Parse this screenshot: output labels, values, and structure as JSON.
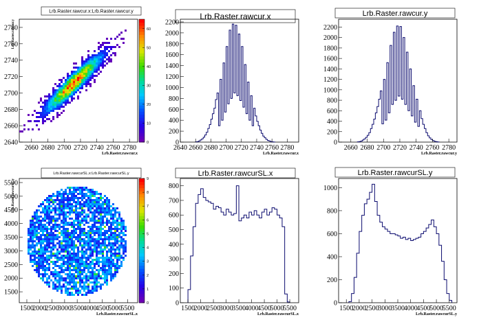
{
  "chart_data": [
    {
      "type": "heatmap",
      "title": "Lrb.Raster.rawcur.x:Lrb.Raster.rawcur.y",
      "xlabel": "Lrb.Raster.rawcur.x",
      "ylabel": "Lrb.Raster.rawcur.y",
      "xlim": [
        2645,
        2790
      ],
      "ylim": [
        2640,
        2790
      ],
      "xticks": [
        "2660",
        "2680",
        "2700",
        "2720",
        "2740",
        "2760",
        "2780"
      ],
      "yticks": [
        "2640",
        "2660",
        "2680",
        "2700",
        "2720",
        "2740",
        "2760",
        "2780"
      ],
      "colorbar": {
        "min": 0,
        "max": 65,
        "ticks": [
          "0",
          "10",
          "20",
          "30",
          "40",
          "50",
          "60"
        ]
      },
      "distribution": {
        "shape": "correlated-ellipse",
        "cx": 2712,
        "cy": 2712,
        "sx": 22,
        "sy": 22,
        "rho": 0.93,
        "peak": 62
      }
    },
    {
      "type": "histogram",
      "title": "Lrb.Raster.rawcur.x",
      "xlabel": "Lrb.Raster.rawcur.x",
      "xlim": [
        2640,
        2795
      ],
      "ylim": [
        0,
        2250
      ],
      "xticks": [
        "2640",
        "2660",
        "2680",
        "2700",
        "2720",
        "2740",
        "2760",
        "2780"
      ],
      "yticks": [
        "0",
        "200",
        "400",
        "600",
        "800",
        "1000",
        "1200",
        "1400",
        "1600",
        "1800",
        "2000",
        "2200"
      ],
      "bin_width": 2,
      "x_start": 2660,
      "values": [
        5,
        10,
        20,
        40,
        60,
        90,
        130,
        180,
        250,
        320,
        420,
        520,
        620,
        780,
        900,
        300,
        1150,
        400,
        1450,
        550,
        1750,
        700,
        2050,
        800,
        2160,
        900,
        2140,
        850,
        1980,
        760,
        1750,
        640,
        1420,
        520,
        1100,
        400,
        850,
        300,
        620,
        480,
        380,
        300,
        220,
        160,
        110,
        80,
        50,
        30,
        20,
        10,
        5,
        2
      ]
    },
    {
      "type": "histogram",
      "title": "Lrb.Raster.rawcur.y",
      "xlabel": "Lrb.Raster.rawcur.y",
      "xlim": [
        2645,
        2790
      ],
      "ylim": [
        0,
        2350
      ],
      "xticks": [
        "2660",
        "2680",
        "2700",
        "2720",
        "2740",
        "2760",
        "2780"
      ],
      "yticks": [
        "0",
        "200",
        "400",
        "600",
        "800",
        "1000",
        "1200",
        "1400",
        "1600",
        "1800",
        "2000",
        "2200"
      ],
      "bin_width": 2,
      "x_start": 2668,
      "values": [
        5,
        10,
        20,
        40,
        60,
        90,
        130,
        180,
        260,
        340,
        440,
        560,
        680,
        820,
        980,
        350,
        1200,
        420,
        1520,
        560,
        1850,
        720,
        2100,
        800,
        2220,
        880,
        2210,
        820,
        2000,
        720,
        1720,
        600,
        1400,
        500,
        1080,
        380,
        820,
        300,
        600,
        450,
        340,
        260,
        180,
        120,
        80,
        50,
        30,
        15,
        8,
        3
      ]
    },
    {
      "type": "heatmap",
      "title": "Lrb.Raster.rawcurSL.x:Lrb.Raster.rawcurSL.y",
      "xlabel": "Lrb.Raster.rawcurSL.x",
      "ylabel": "Lrb.Raster.rawcurSL.y",
      "xlim": [
        1200,
        5900
      ],
      "ylim": [
        1100,
        5650
      ],
      "xticks": [
        "1500",
        "2000",
        "2500",
        "3000",
        "3500",
        "4000",
        "4500",
        "5000",
        "5500"
      ],
      "yticks": [
        "1500",
        "2000",
        "2500",
        "3000",
        "3500",
        "4000",
        "4500",
        "5000",
        "5500"
      ],
      "colorbar": {
        "min": 0,
        "max": 9,
        "ticks": [
          "0",
          "1",
          "2",
          "3",
          "4",
          "5",
          "6",
          "7",
          "8",
          "9"
        ]
      },
      "distribution": {
        "shape": "disk",
        "cx": 3500,
        "cy": 3350,
        "r": 2000,
        "peak": 6
      }
    },
    {
      "type": "histogram",
      "title": "Lrb.Raster.rawcurSL.x",
      "xlabel": "Lrb.Raster.rawcurSL.x",
      "xlim": [
        1200,
        5850
      ],
      "ylim": [
        0,
        850
      ],
      "xticks": [
        "1500",
        "2000",
        "2500",
        "3000",
        "3500",
        "4000",
        "4500",
        "5000",
        "5500"
      ],
      "yticks": [
        "0",
        "100",
        "200",
        "300",
        "400",
        "500",
        "600",
        "700",
        "800"
      ],
      "bin_width": 100,
      "x_start": 1500,
      "values": [
        90,
        320,
        520,
        680,
        740,
        780,
        720,
        700,
        690,
        680,
        640,
        660,
        650,
        620,
        600,
        640,
        620,
        600,
        610,
        800,
        560,
        580,
        600,
        580,
        620,
        600,
        630,
        600,
        580,
        620,
        640,
        600,
        620,
        650,
        640,
        600,
        580,
        520,
        60,
        5
      ]
    },
    {
      "type": "histogram",
      "title": "Lrb.Raster.rawcurSL.y",
      "xlabel": "Lrb.Raster.rawcurSL.y",
      "xlim": [
        1200,
        5800
      ],
      "ylim": [
        0,
        1080
      ],
      "xticks": [
        "1500",
        "2000",
        "2500",
        "3000",
        "3500",
        "4000",
        "4500",
        "5000",
        "5500"
      ],
      "yticks": [
        "0",
        "200",
        "400",
        "600",
        "800",
        "1000"
      ],
      "bin_width": 100,
      "x_start": 1600,
      "values": [
        10,
        80,
        220,
        430,
        620,
        760,
        860,
        900,
        960,
        1030,
        880,
        760,
        700,
        660,
        640,
        620,
        600,
        600,
        590,
        580,
        560,
        570,
        550,
        560,
        540,
        550,
        560,
        570,
        600,
        620,
        650,
        680,
        720,
        660,
        600,
        500,
        360,
        200,
        80,
        20
      ]
    }
  ]
}
